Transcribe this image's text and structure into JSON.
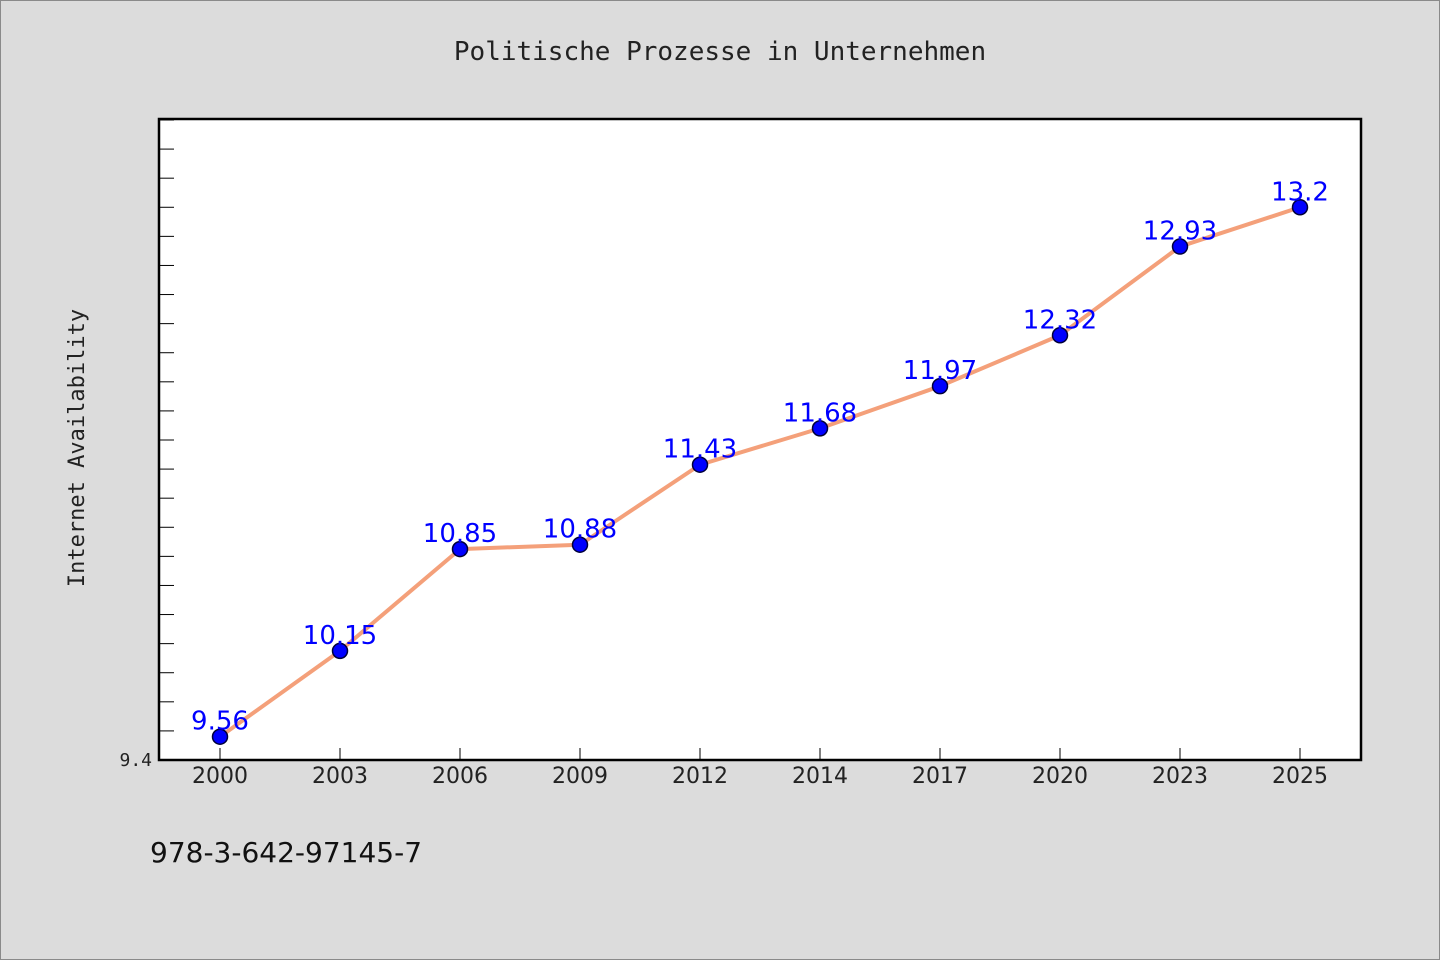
{
  "chart_data": {
    "type": "line",
    "title": "Politische Prozesse in Unternehmen",
    "xlabel": "",
    "ylabel": "Internet Availability",
    "categories": [
      "2000",
      "2003",
      "2006",
      "2009",
      "2012",
      "2014",
      "2017",
      "2020",
      "2023",
      "2025"
    ],
    "series": [
      {
        "values": [
          9.56,
          10.15,
          10.85,
          10.88,
          11.43,
          11.68,
          11.97,
          12.32,
          12.93,
          13.2
        ],
        "data_labels": [
          "9.56",
          "10.15",
          "10.85",
          "10.88",
          "11.43",
          "11.68",
          "11.97",
          "12.32",
          "12.93",
          "13.2"
        ],
        "line_color": "#f4a07a",
        "marker_color": "#0000ff"
      }
    ],
    "ylim": [
      9.4,
      13.8
    ],
    "y_tick_labels": [
      "9.4"
    ],
    "grid": false,
    "legend": "none"
  },
  "footer": {
    "isbn": "978-3-642-97145-7"
  },
  "colors": {
    "background": "#dcdcdc",
    "plot_background": "#ffffff",
    "label_color": "#0000ff"
  }
}
